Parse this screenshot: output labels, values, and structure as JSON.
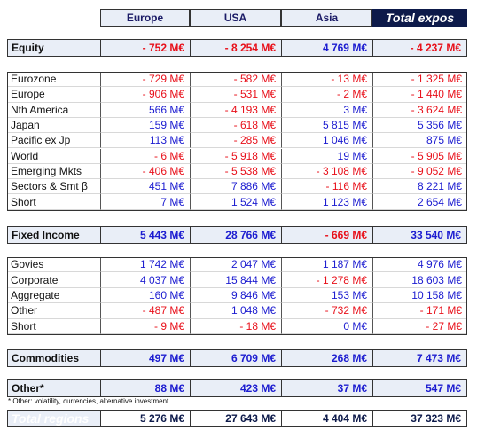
{
  "header": {
    "columns": [
      "Europe",
      "USA",
      "Asia",
      "Total expos"
    ]
  },
  "equity": {
    "label": "Equity",
    "values": [
      "- 752 M€",
      "- 8 254 M€",
      "4 769 M€",
      "- 4 237 M€"
    ]
  },
  "equity_detail": [
    {
      "label": "Eurozone",
      "values": [
        "- 729 M€",
        "- 582 M€",
        "- 13 M€",
        "- 1 325 M€"
      ]
    },
    {
      "label": "Europe",
      "values": [
        "- 906 M€",
        "- 531 M€",
        "- 2 M€",
        "- 1 440 M€"
      ]
    },
    {
      "label": "Nth America",
      "values": [
        "566 M€",
        "- 4 193 M€",
        "3 M€",
        "- 3 624 M€"
      ]
    },
    {
      "label": "Japan",
      "values": [
        "159 M€",
        "- 618 M€",
        "5 815 M€",
        "5 356 M€"
      ]
    },
    {
      "label": "Pacific ex Jp",
      "values": [
        "113 M€",
        "- 285 M€",
        "1 046 M€",
        "875 M€"
      ]
    },
    {
      "label": "World",
      "values": [
        "- 6 M€",
        "- 5 918 M€",
        "19 M€",
        "- 5 905 M€"
      ]
    },
    {
      "label": "Emerging Mkts",
      "values": [
        "- 406 M€",
        "- 5 538 M€",
        "- 3 108 M€",
        "- 9 052 M€"
      ]
    },
    {
      "label": "Sectors & Smt β",
      "values": [
        "451 M€",
        "7 886 M€",
        "- 116 M€",
        "8 221 M€"
      ]
    },
    {
      "label": "Short",
      "values": [
        "7 M€",
        "1 524 M€",
        "1 123 M€",
        "2 654 M€"
      ]
    }
  ],
  "fixed_income": {
    "label": "Fixed Income",
    "values": [
      "5 443 M€",
      "28 766 M€",
      "- 669 M€",
      "33 540 M€"
    ]
  },
  "fixed_income_detail": [
    {
      "label": "Govies",
      "values": [
        "1 742 M€",
        "2 047 M€",
        "1 187 M€",
        "4 976 M€"
      ]
    },
    {
      "label": "Corporate",
      "values": [
        "4 037 M€",
        "15 844 M€",
        "- 1 278 M€",
        "18 603 M€"
      ]
    },
    {
      "label": "Aggregate",
      "values": [
        "160 M€",
        "9 846 M€",
        "153 M€",
        "10 158 M€"
      ]
    },
    {
      "label": "Other",
      "values": [
        "- 487 M€",
        "1 048 M€",
        "- 732 M€",
        "- 171 M€"
      ]
    },
    {
      "label": "Short",
      "values": [
        "- 9 M€",
        "- 18 M€",
        "0 M€",
        "- 27 M€"
      ]
    }
  ],
  "commodities": {
    "label": "Commodities",
    "values": [
      "497 M€",
      "6 709 M€",
      "268 M€",
      "7 473 M€"
    ]
  },
  "other": {
    "label": "Other*",
    "values": [
      "88 M€",
      "423 M€",
      "37 M€",
      "547 M€"
    ]
  },
  "footnote": "* Other: volatility, currencies, alternative investment…",
  "total": {
    "label": "Total regions",
    "values": [
      "5 276 M€",
      "27 643 M€",
      "4 404 M€",
      "37 323 M€"
    ]
  }
}
